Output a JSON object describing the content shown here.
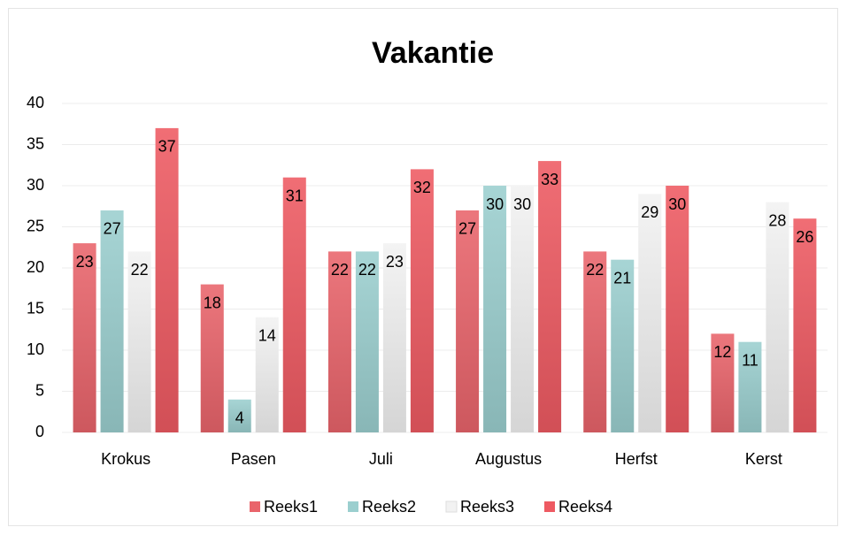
{
  "chart_data": {
    "type": "bar",
    "title": "Vakantie",
    "categories": [
      "Krokus",
      "Pasen",
      "Juli",
      "Augustus",
      "Herfst",
      "Kerst"
    ],
    "series": [
      {
        "name": "Reeks1",
        "color": "#e9646b",
        "values": [
          23,
          18,
          22,
          27,
          22,
          12
        ]
      },
      {
        "name": "Reeks2",
        "color": "#9bcfcf",
        "values": [
          27,
          4,
          22,
          30,
          21,
          11
        ]
      },
      {
        "name": "Reeks3",
        "color": "#f2f2f2",
        "values": [
          22,
          14,
          23,
          30,
          29,
          28
        ]
      },
      {
        "name": "Reeks4",
        "color": "#ee5a62",
        "values": [
          37,
          31,
          32,
          33,
          30,
          26
        ]
      }
    ],
    "ylim": [
      0,
      40
    ],
    "yticks": [
      0,
      5,
      10,
      15,
      20,
      25,
      30,
      35,
      40
    ],
    "grid": true,
    "legend": "bottom"
  }
}
